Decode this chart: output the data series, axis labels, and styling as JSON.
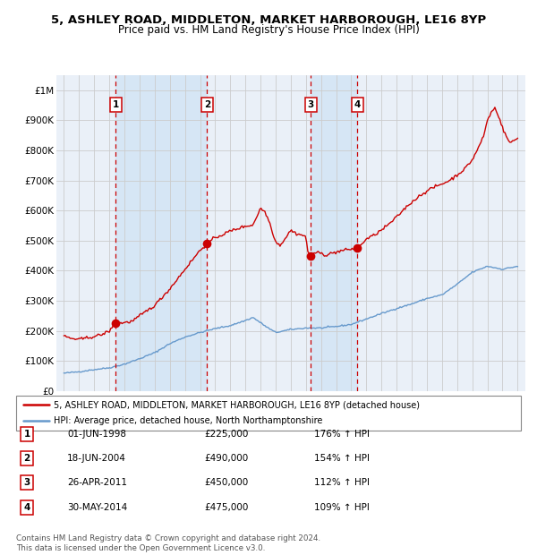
{
  "title": "5, ASHLEY ROAD, MIDDLETON, MARKET HARBOROUGH, LE16 8YP",
  "subtitle": "Price paid vs. HM Land Registry's House Price Index (HPI)",
  "bg_color": "#ffffff",
  "chart_bg_color": "#eaf0f8",
  "grid_color": "#cccccc",
  "hpi_color": "#6699cc",
  "price_color": "#cc0000",
  "sale_marker_color": "#cc0000",
  "shade_color": "#d6e6f5",
  "dashed_line_color": "#cc0000",
  "transactions": [
    {
      "date": 1998.42,
      "price": 225000,
      "label": "1"
    },
    {
      "date": 2004.46,
      "price": 490000,
      "label": "2"
    },
    {
      "date": 2011.32,
      "price": 450000,
      "label": "3"
    },
    {
      "date": 2014.41,
      "price": 475000,
      "label": "4"
    }
  ],
  "legend_items": [
    {
      "label": "5, ASHLEY ROAD, MIDDLETON, MARKET HARBOROUGH, LE16 8YP (detached house)",
      "color": "#cc0000"
    },
    {
      "label": "HPI: Average price, detached house, North Northamptonshire",
      "color": "#6699cc"
    }
  ],
  "table_rows": [
    {
      "num": "1",
      "date": "01-JUN-1998",
      "price": "£225,000",
      "hpi": "176% ↑ HPI"
    },
    {
      "num": "2",
      "date": "18-JUN-2004",
      "price": "£490,000",
      "hpi": "154% ↑ HPI"
    },
    {
      "num": "3",
      "date": "26-APR-2011",
      "price": "£450,000",
      "hpi": "112% ↑ HPI"
    },
    {
      "num": "4",
      "date": "30-MAY-2014",
      "price": "£475,000",
      "hpi": "109% ↑ HPI"
    }
  ],
  "footer": "Contains HM Land Registry data © Crown copyright and database right 2024.\nThis data is licensed under the Open Government Licence v3.0.",
  "ylim": [
    0,
    1050000
  ],
  "xlim": [
    1994.5,
    2025.5
  ],
  "yticks": [
    0,
    100000,
    200000,
    300000,
    400000,
    500000,
    600000,
    700000,
    800000,
    900000,
    1000000
  ],
  "ytick_labels": [
    "£0",
    "£100K",
    "£200K",
    "£300K",
    "£400K",
    "£500K",
    "£600K",
    "£700K",
    "£800K",
    "£900K",
    "£1M"
  ],
  "xticks": [
    1995,
    1996,
    1997,
    1998,
    1999,
    2000,
    2001,
    2002,
    2003,
    2004,
    2005,
    2006,
    2007,
    2008,
    2009,
    2010,
    2011,
    2012,
    2013,
    2014,
    2015,
    2016,
    2017,
    2018,
    2019,
    2020,
    2021,
    2022,
    2023,
    2024,
    2025
  ]
}
